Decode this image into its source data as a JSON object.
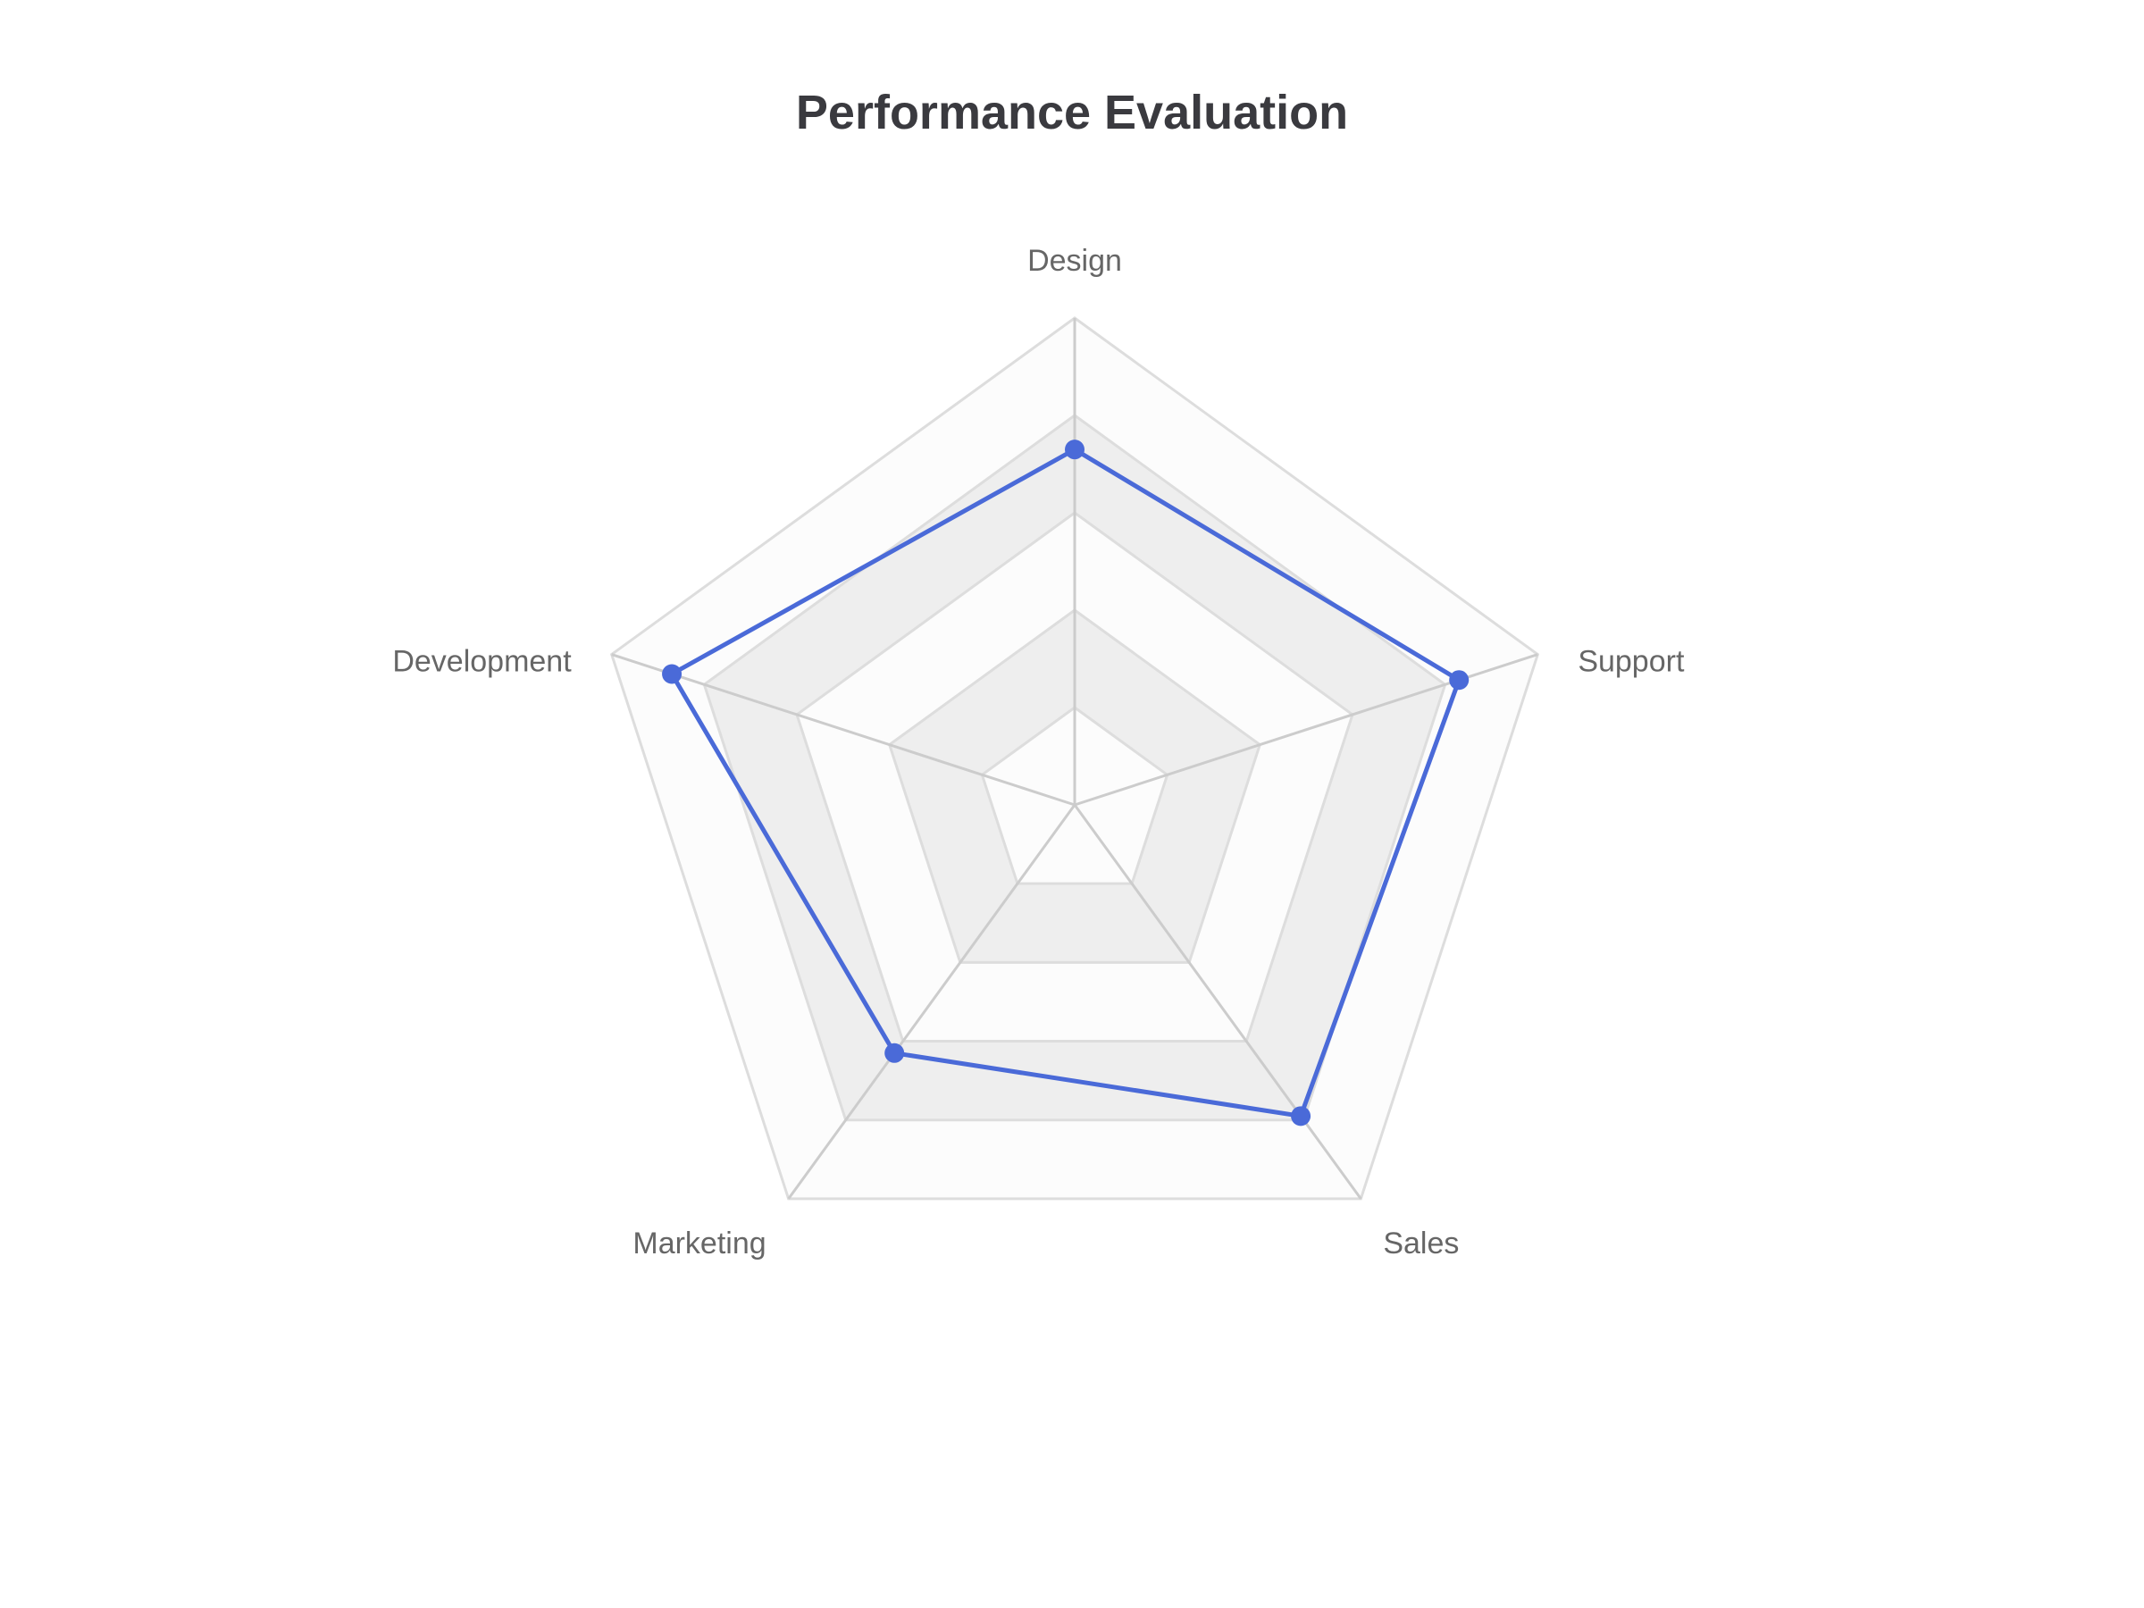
{
  "chart_data": {
    "type": "radar",
    "title": "Performance Evaluation",
    "indicators": [
      "Design",
      "Support",
      "Sales",
      "Marketing",
      "Development"
    ],
    "max": 100,
    "split_number": 5,
    "series": [
      {
        "values": [
          73,
          83,
          79,
          63,
          87
        ]
      }
    ],
    "colors": {
      "series": "#4a6ad8",
      "split_area_light": "#fcfcfc",
      "split_area_dark": "#eeeeee",
      "grid_line": "#dddddd",
      "spoke_line": "#cccccc",
      "label": "#666666",
      "title": "#3a3a3f"
    }
  }
}
